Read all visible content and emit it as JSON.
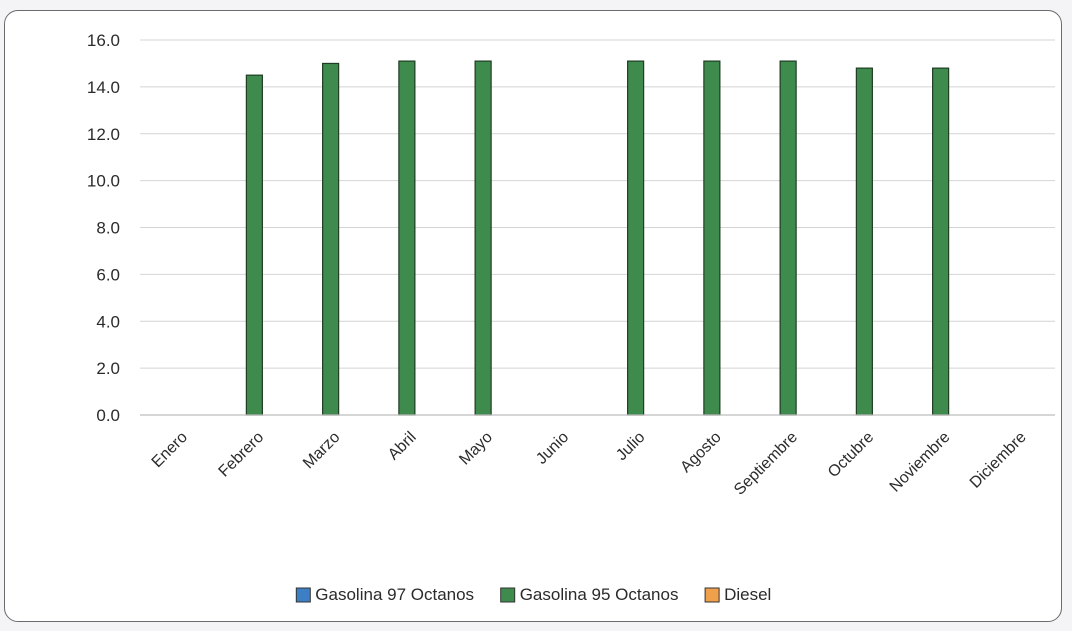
{
  "chart_data": {
    "type": "bar",
    "title": "",
    "xlabel": "",
    "ylabel": "",
    "ylim": [
      0,
      16
    ],
    "yticks": [
      "0.0",
      "2.0",
      "4.0",
      "6.0",
      "8.0",
      "10.0",
      "12.0",
      "14.0",
      "16.0"
    ],
    "grid": true,
    "legend_position": "bottom",
    "categories": [
      "Enero",
      "Febrero",
      "Marzo",
      "Abril",
      "Mayo",
      "Junio",
      "Julio",
      "Agosto",
      "Septiembre",
      "Octubre",
      "Noviembre",
      "Diciembre"
    ],
    "series": [
      {
        "name": "Gasolina 97 Octanos",
        "color": "#3d7fc4",
        "values": [
          null,
          null,
          null,
          null,
          null,
          null,
          null,
          null,
          null,
          null,
          null,
          null
        ]
      },
      {
        "name": "Gasolina 95 Octanos",
        "color": "#3f8a4d",
        "values": [
          null,
          14.5,
          15.0,
          15.1,
          15.1,
          null,
          15.1,
          15.1,
          15.1,
          14.8,
          14.8,
          null
        ]
      },
      {
        "name": "Diesel",
        "color": "#f0a04b",
        "values": [
          null,
          null,
          null,
          null,
          null,
          null,
          null,
          null,
          null,
          null,
          null,
          null
        ]
      }
    ]
  }
}
